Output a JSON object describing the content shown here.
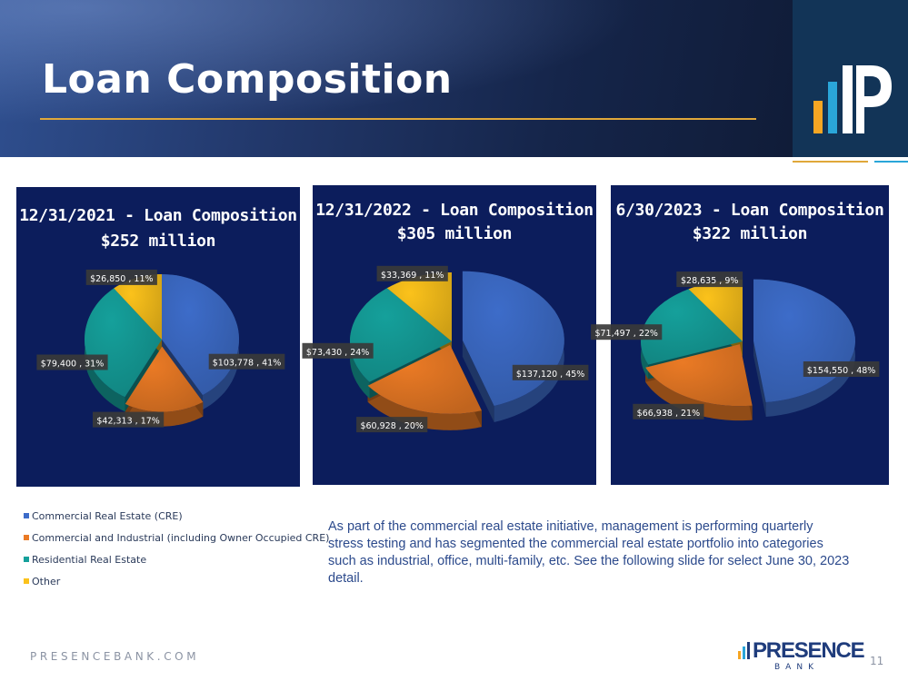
{
  "header": {
    "title": "Loan Composition"
  },
  "colors": {
    "header_dark": "#15254a",
    "accent_gold": "#e0a83a",
    "logo_bg": "#123457",
    "chart_bg": "#0c1d5c",
    "note_text": "#2c4a8c"
  },
  "chart_data": [
    {
      "type": "pie",
      "title_line1": "12/31/2021 - Loan Composition",
      "title_line2": "$252 million",
      "categories": [
        "Commercial Real Estate (CRE)",
        "Commercial and Industrial (including Owner Occupied CRE)",
        "Residential Real Estate",
        "Other"
      ],
      "values": [
        103778,
        42313,
        79400,
        26850
      ],
      "percent": [
        41,
        17,
        31,
        11
      ],
      "data_labels": [
        "$103,778 , 41%",
        "$42,313 , 17%",
        "$79,400 , 31%",
        "$26,850 , 11%"
      ]
    },
    {
      "type": "pie",
      "title_line1": "12/31/2022 - Loan Composition",
      "title_line2": "$305 million",
      "categories": [
        "Commercial Real Estate (CRE)",
        "Commercial and Industrial (including Owner Occupied CRE)",
        "Residential Real Estate",
        "Other"
      ],
      "values": [
        137120,
        60928,
        73430,
        33369
      ],
      "percent": [
        45,
        20,
        24,
        11
      ],
      "data_labels": [
        "$137,120 , 45%",
        "$60,928 , 20%",
        "$73,430 , 24%",
        "$33,369 , 11%"
      ]
    },
    {
      "type": "pie",
      "title_line1": "6/30/2023 - Loan Composition",
      "title_line2": "$322 million",
      "categories": [
        "Commercial Real Estate (CRE)",
        "Commercial and Industrial (including Owner Occupied CRE)",
        "Residential Real Estate",
        "Other"
      ],
      "values": [
        154550,
        66938,
        71497,
        28635
      ],
      "percent": [
        48,
        21,
        22,
        9
      ],
      "data_labels": [
        "$154,550 , 48%",
        "$66,938 , 21%",
        "$71,497 , 22%",
        "$28,635 , 9%"
      ]
    }
  ],
  "series_colors": [
    "#3d6cc9",
    "#ea7a25",
    "#15a09b",
    "#fbc21b"
  ],
  "legend": {
    "items": [
      {
        "label": "Commercial Real Estate (CRE)",
        "color": "#3d6cc9"
      },
      {
        "label": "Commercial and Industrial (including Owner Occupied CRE)",
        "color": "#ea7a25"
      },
      {
        "label": "Residential Real Estate",
        "color": "#15a09b"
      },
      {
        "label": "Other",
        "color": "#fbc21b"
      }
    ]
  },
  "note": "As part of the commercial real estate initiative, management is performing quarterly stress testing and has segmented the commercial real estate portfolio into categories such as industrial, office, multi-family, etc.  See the following slide for select June 30, 2023 detail.",
  "footer": {
    "website": "PRESENCEBANK.COM",
    "brand": "PRESENCE",
    "brand_sub": "BANK",
    "page_number": "11"
  }
}
